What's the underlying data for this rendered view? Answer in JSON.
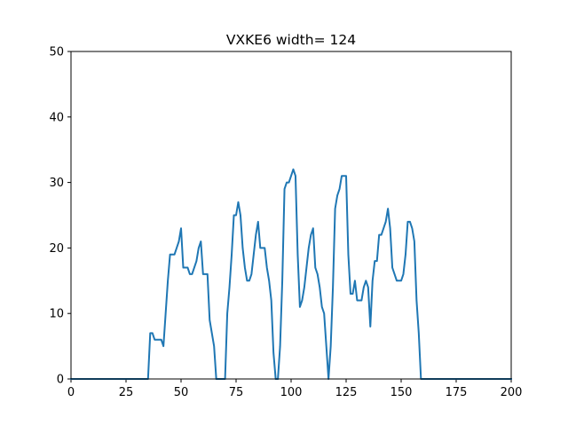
{
  "chart_data": {
    "type": "line",
    "title": "VXKE6 width= 124",
    "xlabel": "",
    "ylabel": "",
    "xlim": [
      0,
      200
    ],
    "ylim": [
      0,
      50
    ],
    "xticks": [
      0,
      25,
      50,
      75,
      100,
      125,
      150,
      175,
      200
    ],
    "yticks": [
      0,
      10,
      20,
      30,
      40,
      50
    ],
    "grid": false,
    "legend": "none",
    "line_color": "#1f77b4",
    "series": [
      {
        "x": [
          0,
          35,
          36,
          37,
          38,
          39,
          40,
          41,
          42,
          43,
          44,
          45,
          46,
          47,
          48,
          49,
          50,
          51,
          52,
          53,
          54,
          55,
          56,
          57,
          58,
          59,
          60,
          61,
          62,
          63,
          64,
          65,
          66,
          67,
          68,
          69,
          70,
          71,
          72,
          73,
          74,
          75,
          76,
          77,
          78,
          79,
          80,
          81,
          82,
          83,
          84,
          85,
          86,
          87,
          88,
          89,
          90,
          91,
          92,
          93,
          94,
          95,
          96,
          97,
          98,
          99,
          100,
          101,
          102,
          103,
          104,
          105,
          106,
          107,
          108,
          109,
          110,
          111,
          112,
          113,
          114,
          115,
          116,
          117,
          118,
          119,
          120,
          121,
          122,
          123,
          124,
          125,
          126,
          127,
          128,
          129,
          130,
          131,
          132,
          133,
          134,
          135,
          136,
          137,
          138,
          139,
          140,
          141,
          142,
          143,
          144,
          145,
          146,
          147,
          148,
          149,
          150,
          151,
          152,
          153,
          154,
          155,
          156,
          157,
          158,
          159,
          200
        ],
        "values": [
          0,
          0,
          7,
          7,
          6,
          6,
          6,
          6,
          5,
          10,
          15,
          19,
          19,
          19,
          20,
          21,
          23,
          17,
          17,
          17,
          16,
          16,
          17,
          18,
          20,
          21,
          16,
          16,
          16,
          9,
          7,
          5,
          0,
          0,
          0,
          0,
          0,
          10,
          14,
          19,
          25,
          25,
          27,
          25,
          20,
          17,
          15,
          15,
          16,
          19,
          22,
          24,
          20,
          20,
          20,
          17,
          15,
          12,
          4,
          0,
          0,
          5,
          15,
          29,
          30,
          30,
          31,
          32,
          31,
          19,
          11,
          12,
          14,
          17,
          20,
          22,
          23,
          17,
          16,
          14,
          11,
          10,
          5,
          0,
          5,
          14,
          26,
          28,
          29,
          31,
          31,
          31,
          19,
          13,
          13,
          15,
          12,
          12,
          12,
          14,
          15,
          14,
          8,
          15,
          18,
          18,
          22,
          22,
          23,
          24,
          26,
          23,
          17,
          16,
          15,
          15,
          15,
          16,
          19,
          24,
          24,
          23,
          21,
          12,
          7,
          0,
          0
        ]
      }
    ]
  }
}
